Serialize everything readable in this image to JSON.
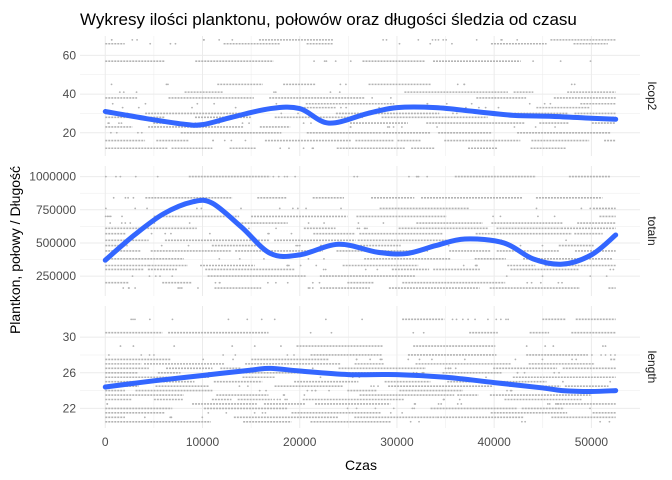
{
  "chart_data": {
    "type": "scatter",
    "title": "Wykresy ilości planktonu, połowów oraz długości śledzia od czasu",
    "xlabel": "Czas",
    "ylabel": "Plantkon, połowy / Długość",
    "x_ticks": [
      0,
      10000,
      20000,
      30000,
      40000,
      50000
    ],
    "x_range": [
      -2600,
      55000
    ],
    "grid": true,
    "panels": [
      {
        "strip": "lcop2",
        "y_range": [
          8,
          70
        ],
        "y_ticks": [
          20,
          40,
          60
        ],
        "scatter_y_levels": [
          12,
          16,
          20,
          23,
          25,
          28,
          30,
          33,
          35,
          38,
          41,
          45,
          57,
          66,
          68
        ],
        "smooth": {
          "x": [
            0,
            4000,
            8000,
            10000,
            13000,
            17000,
            20000,
            23000,
            27000,
            30000,
            34000,
            38000,
            42000,
            46000,
            50000,
            52500
          ],
          "y": [
            31,
            27.5,
            24.5,
            24.2,
            28,
            32.5,
            32.5,
            25,
            30,
            33,
            33,
            31,
            29,
            28.5,
            27.5,
            27
          ]
        }
      },
      {
        "strip": "totaln",
        "y_range": [
          100000,
          1080000
        ],
        "y_ticks": [
          250000,
          500000,
          750000,
          1000000
        ],
        "scatter_y_levels": [
          160000,
          200000,
          250000,
          300000,
          330000,
          380000,
          440000,
          480000,
          520000,
          570000,
          610000,
          650000,
          700000,
          760000,
          840000,
          1000000
        ],
        "smooth": {
          "x": [
            0,
            3000,
            6000,
            9000,
            11000,
            14000,
            17000,
            20000,
            24000,
            28000,
            31000,
            34000,
            37000,
            41000,
            44000,
            47000,
            50000,
            52500
          ],
          "y": [
            370000,
            560000,
            720000,
            810000,
            800000,
            620000,
            420000,
            410000,
            490000,
            430000,
            420000,
            480000,
            530000,
            500000,
            380000,
            340000,
            410000,
            560000
          ]
        }
      },
      {
        "strip": "length",
        "y_range": [
          19.8,
          33.5
        ],
        "y_ticks": [
          22,
          26,
          30
        ],
        "scatter_y_levels": [
          20.5,
          21,
          21.5,
          22,
          22.5,
          23,
          23.5,
          24,
          24.5,
          25,
          25.5,
          26,
          26.5,
          27,
          27.5,
          28,
          29,
          30.5,
          32
        ],
        "smooth": {
          "x": [
            0,
            5000,
            10000,
            15000,
            17000,
            20000,
            25000,
            30000,
            35000,
            40000,
            45000,
            47000,
            50000,
            52500
          ],
          "y": [
            24.4,
            25.1,
            25.7,
            26.3,
            26.5,
            26.2,
            25.8,
            25.8,
            25.5,
            24.9,
            24.3,
            24.0,
            23.9,
            24.0
          ]
        }
      }
    ],
    "colors": {
      "points": "#b3b3b3",
      "smooth": "#3366ff",
      "grid": "#ebebeb"
    }
  }
}
